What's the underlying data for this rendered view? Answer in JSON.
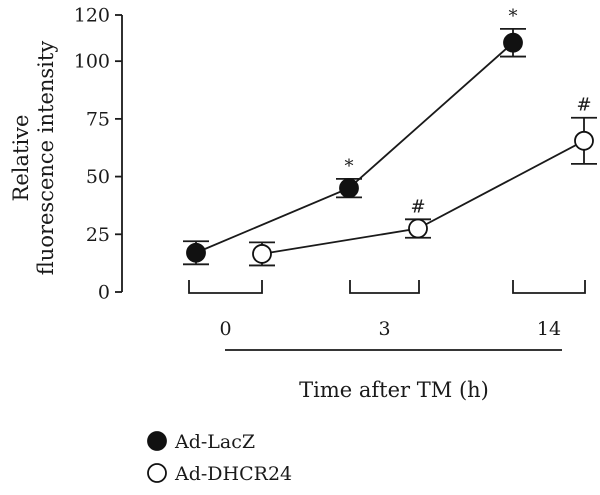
{
  "chart_data": {
    "type": "line",
    "title": "",
    "ylabel_lines": [
      "Relative",
      "fluorescence intensity"
    ],
    "xlabel": "Time after TM (h)",
    "ylim": [
      0,
      120
    ],
    "yticks": [
      0,
      25,
      50,
      75,
      100,
      120
    ],
    "categories": [
      "0",
      "3",
      "14"
    ],
    "series": [
      {
        "name": "Ad-LacZ",
        "marker": "filled-circle",
        "values": [
          17,
          45,
          108
        ],
        "errors": [
          5,
          4,
          6
        ],
        "marks": [
          "",
          "*",
          "*"
        ]
      },
      {
        "name": "Ad-DHCR24",
        "marker": "open-circle",
        "values": [
          16.5,
          27.5,
          65.5
        ],
        "errors": [
          5,
          4,
          10
        ],
        "marks": [
          "",
          "#",
          "#"
        ]
      }
    ],
    "legend_placement": "bottom-left",
    "grid": false
  }
}
